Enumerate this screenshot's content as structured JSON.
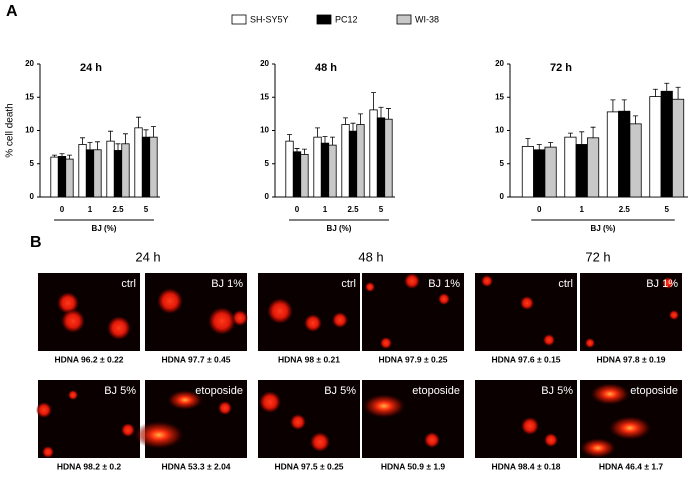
{
  "panel_a": {
    "label": "A"
  },
  "chart_data": [
    {
      "type": "bar",
      "title": "24 h",
      "ylabel": "% cell death",
      "xlabel": "BJ (%)",
      "categories": [
        "0",
        "1",
        "2.5",
        "5"
      ],
      "ylim": [
        0,
        20
      ],
      "yticks": [
        0,
        5,
        10,
        15,
        20
      ],
      "series": [
        {
          "name": "SH-SY5Y",
          "color": "#ffffff",
          "values": [
            6.0,
            7.9,
            8.4,
            10.4
          ],
          "errors": [
            0.3,
            1.0,
            1.5,
            1.6
          ]
        },
        {
          "name": "PC12",
          "color": "#000000",
          "values": [
            6.1,
            7.1,
            7.0,
            9.0
          ],
          "errors": [
            0.4,
            1.1,
            1.0,
            1.1
          ]
        },
        {
          "name": "WI-38",
          "color": "#c8c8c8",
          "values": [
            5.7,
            7.1,
            8.0,
            9.0
          ],
          "errors": [
            0.6,
            1.2,
            1.5,
            1.6
          ]
        }
      ]
    },
    {
      "type": "bar",
      "title": "48 h",
      "xlabel": "BJ (%)",
      "categories": [
        "0",
        "1",
        "2.5",
        "5"
      ],
      "ylim": [
        0,
        20
      ],
      "yticks": [
        0,
        5,
        10,
        15,
        20
      ],
      "series": [
        {
          "name": "SH-SY5Y",
          "color": "#ffffff",
          "values": [
            8.4,
            9.0,
            10.9,
            13.1
          ],
          "errors": [
            1.0,
            1.4,
            1.0,
            2.6
          ]
        },
        {
          "name": "PC12",
          "color": "#000000",
          "values": [
            6.8,
            8.1,
            9.9,
            11.9
          ],
          "errors": [
            0.5,
            1.0,
            1.2,
            1.6
          ]
        },
        {
          "name": "WI-38",
          "color": "#c8c8c8",
          "values": [
            6.4,
            7.8,
            10.9,
            11.7
          ],
          "errors": [
            0.8,
            1.2,
            1.6,
            1.6
          ]
        }
      ]
    },
    {
      "type": "bar",
      "title": "72 h",
      "xlabel": "BJ (%)",
      "categories": [
        "0",
        "1",
        "2.5",
        "5"
      ],
      "ylim": [
        0,
        20
      ],
      "yticks": [
        0,
        5,
        10,
        15,
        20
      ],
      "series": [
        {
          "name": "SH-SY5Y",
          "color": "#ffffff",
          "values": [
            7.6,
            9.0,
            12.8,
            15.1
          ],
          "errors": [
            1.2,
            0.6,
            1.8,
            1.1
          ]
        },
        {
          "name": "PC12",
          "color": "#000000",
          "values": [
            7.1,
            7.9,
            12.9,
            15.9
          ],
          "errors": [
            0.8,
            1.9,
            1.7,
            1.2
          ]
        },
        {
          "name": "WI-38",
          "color": "#c8c8c8",
          "values": [
            7.5,
            8.9,
            11.0,
            14.7
          ],
          "errors": [
            0.7,
            1.6,
            1.2,
            1.8
          ]
        }
      ]
    }
  ],
  "panel_b": {
    "label": "B",
    "groups": [
      {
        "title": "24 h",
        "images": [
          {
            "label": "ctrl",
            "caption": "HDNA 96.2 ± 0.22"
          },
          {
            "label": "BJ 1%",
            "caption": "HDNA 97.7 ±  0.45"
          },
          {
            "label": "BJ 5%",
            "caption": "HDNA 98.2 ±  0.2"
          },
          {
            "label": "etoposide",
            "caption": "HDNA 53.3 ± 2.04"
          }
        ]
      },
      {
        "title": "48 h",
        "images": [
          {
            "label": "ctrl",
            "caption": "HDNA 98 ± 0.21"
          },
          {
            "label": "BJ 1%",
            "caption": "HDNA 97.9 ± 0.25"
          },
          {
            "label": "BJ 5%",
            "caption": "HDNA  97.5 ± 0.25"
          },
          {
            "label": "etoposide",
            "caption": "HDNA   50.9 ± 1.9"
          }
        ]
      },
      {
        "title": "72 h",
        "images": [
          {
            "label": "ctrl",
            "caption": "HDNA  97.6 ± 0.15"
          },
          {
            "label": "BJ 1%",
            "caption": "HDNA  97.8 ± 0.19"
          },
          {
            "label": "BJ 5%",
            "caption": "HDNA  98.4 ± 0.18"
          },
          {
            "label": "etoposide",
            "caption": "HDNA   46.4 ± 1.7"
          }
        ]
      }
    ]
  }
}
